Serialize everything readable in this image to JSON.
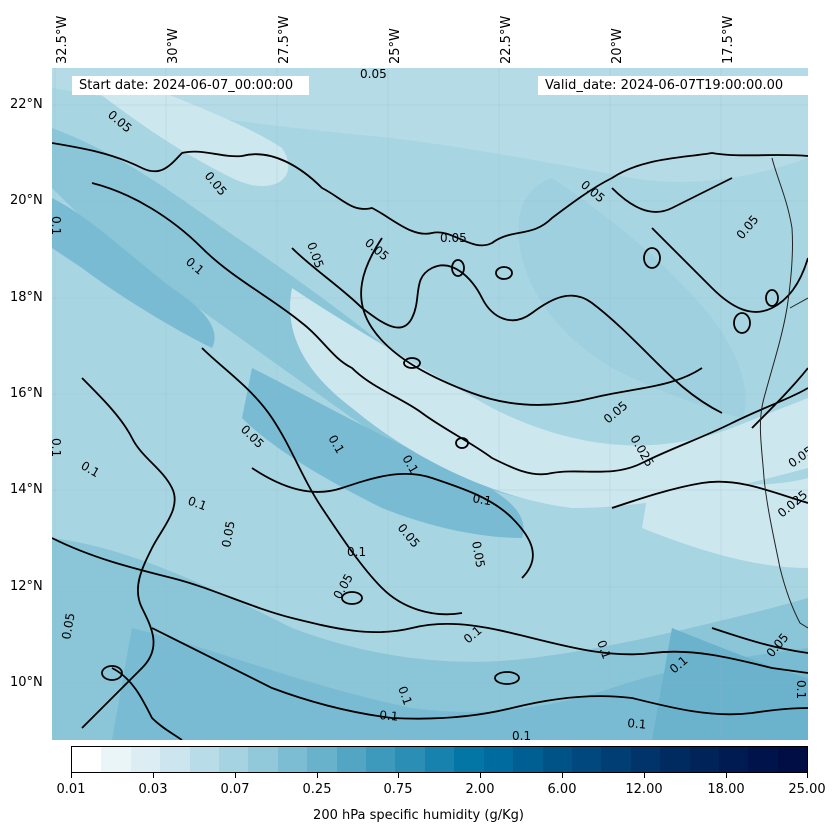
{
  "map": {
    "start_date": "Start date: 2024-06-07_00:00:00",
    "valid_date": "Valid_date: 2024-06-07T19:00:00.00",
    "lon_labels": [
      "32.5°W",
      "30°W",
      "27.5°W",
      "25°W",
      "22.5°W",
      "20°W",
      "17.5°W"
    ],
    "lat_labels": [
      "22°N",
      "20°N",
      "18°N",
      "16°N",
      "14°N",
      "12°N",
      "10°N"
    ],
    "contour_labels": [
      "0.05",
      "0.05",
      "0.05",
      "0.1",
      "0.05",
      "0.05",
      "0.05",
      "0.05",
      "0.05",
      "0.1",
      "0.05",
      "0.1",
      "0.1",
      "0.05",
      "0.025",
      "0.1",
      "0.1",
      "0.1",
      "0.1",
      "0.05",
      "0.1",
      "0.05",
      "0.05",
      "0.05",
      "0.05",
      "0.025",
      "0.05",
      "0.1",
      "0.1",
      "0.1",
      "0.1",
      "0.1",
      "0.1",
      "0.1",
      "0.05",
      "0.1"
    ],
    "colors": {
      "light": "#cde7ef",
      "pale": "#b5dbe6",
      "mid": "#9fd0df",
      "medium": "#8ac5d8",
      "dark": "#79bbd3",
      "darker": "#6bb2cd",
      "contour": "#000000",
      "coast": "#222222"
    }
  },
  "colorbar": {
    "title": "200 hPa specific humidity (g/Kg)",
    "tick_labels": [
      "0.01",
      "0.03",
      "0.07",
      "0.25",
      "0.75",
      "2.00",
      "6.00",
      "12.00",
      "18.00",
      "25.00"
    ],
    "colors": [
      "#ffffff",
      "#eaf5f8",
      "#dcedf3",
      "#cce5ee",
      "#b9dde8",
      "#a6d3e1",
      "#91c8da",
      "#7dbdd3",
      "#68b2cc",
      "#52a6c4",
      "#3d9abd",
      "#2a8eb5",
      "#1682ad",
      "#0476a6",
      "#006b9e",
      "#005f92",
      "#005387",
      "#00487d",
      "#003e73",
      "#00346a",
      "#002b61",
      "#002359",
      "#001b52",
      "#00144b",
      "#000e45"
    ]
  }
}
